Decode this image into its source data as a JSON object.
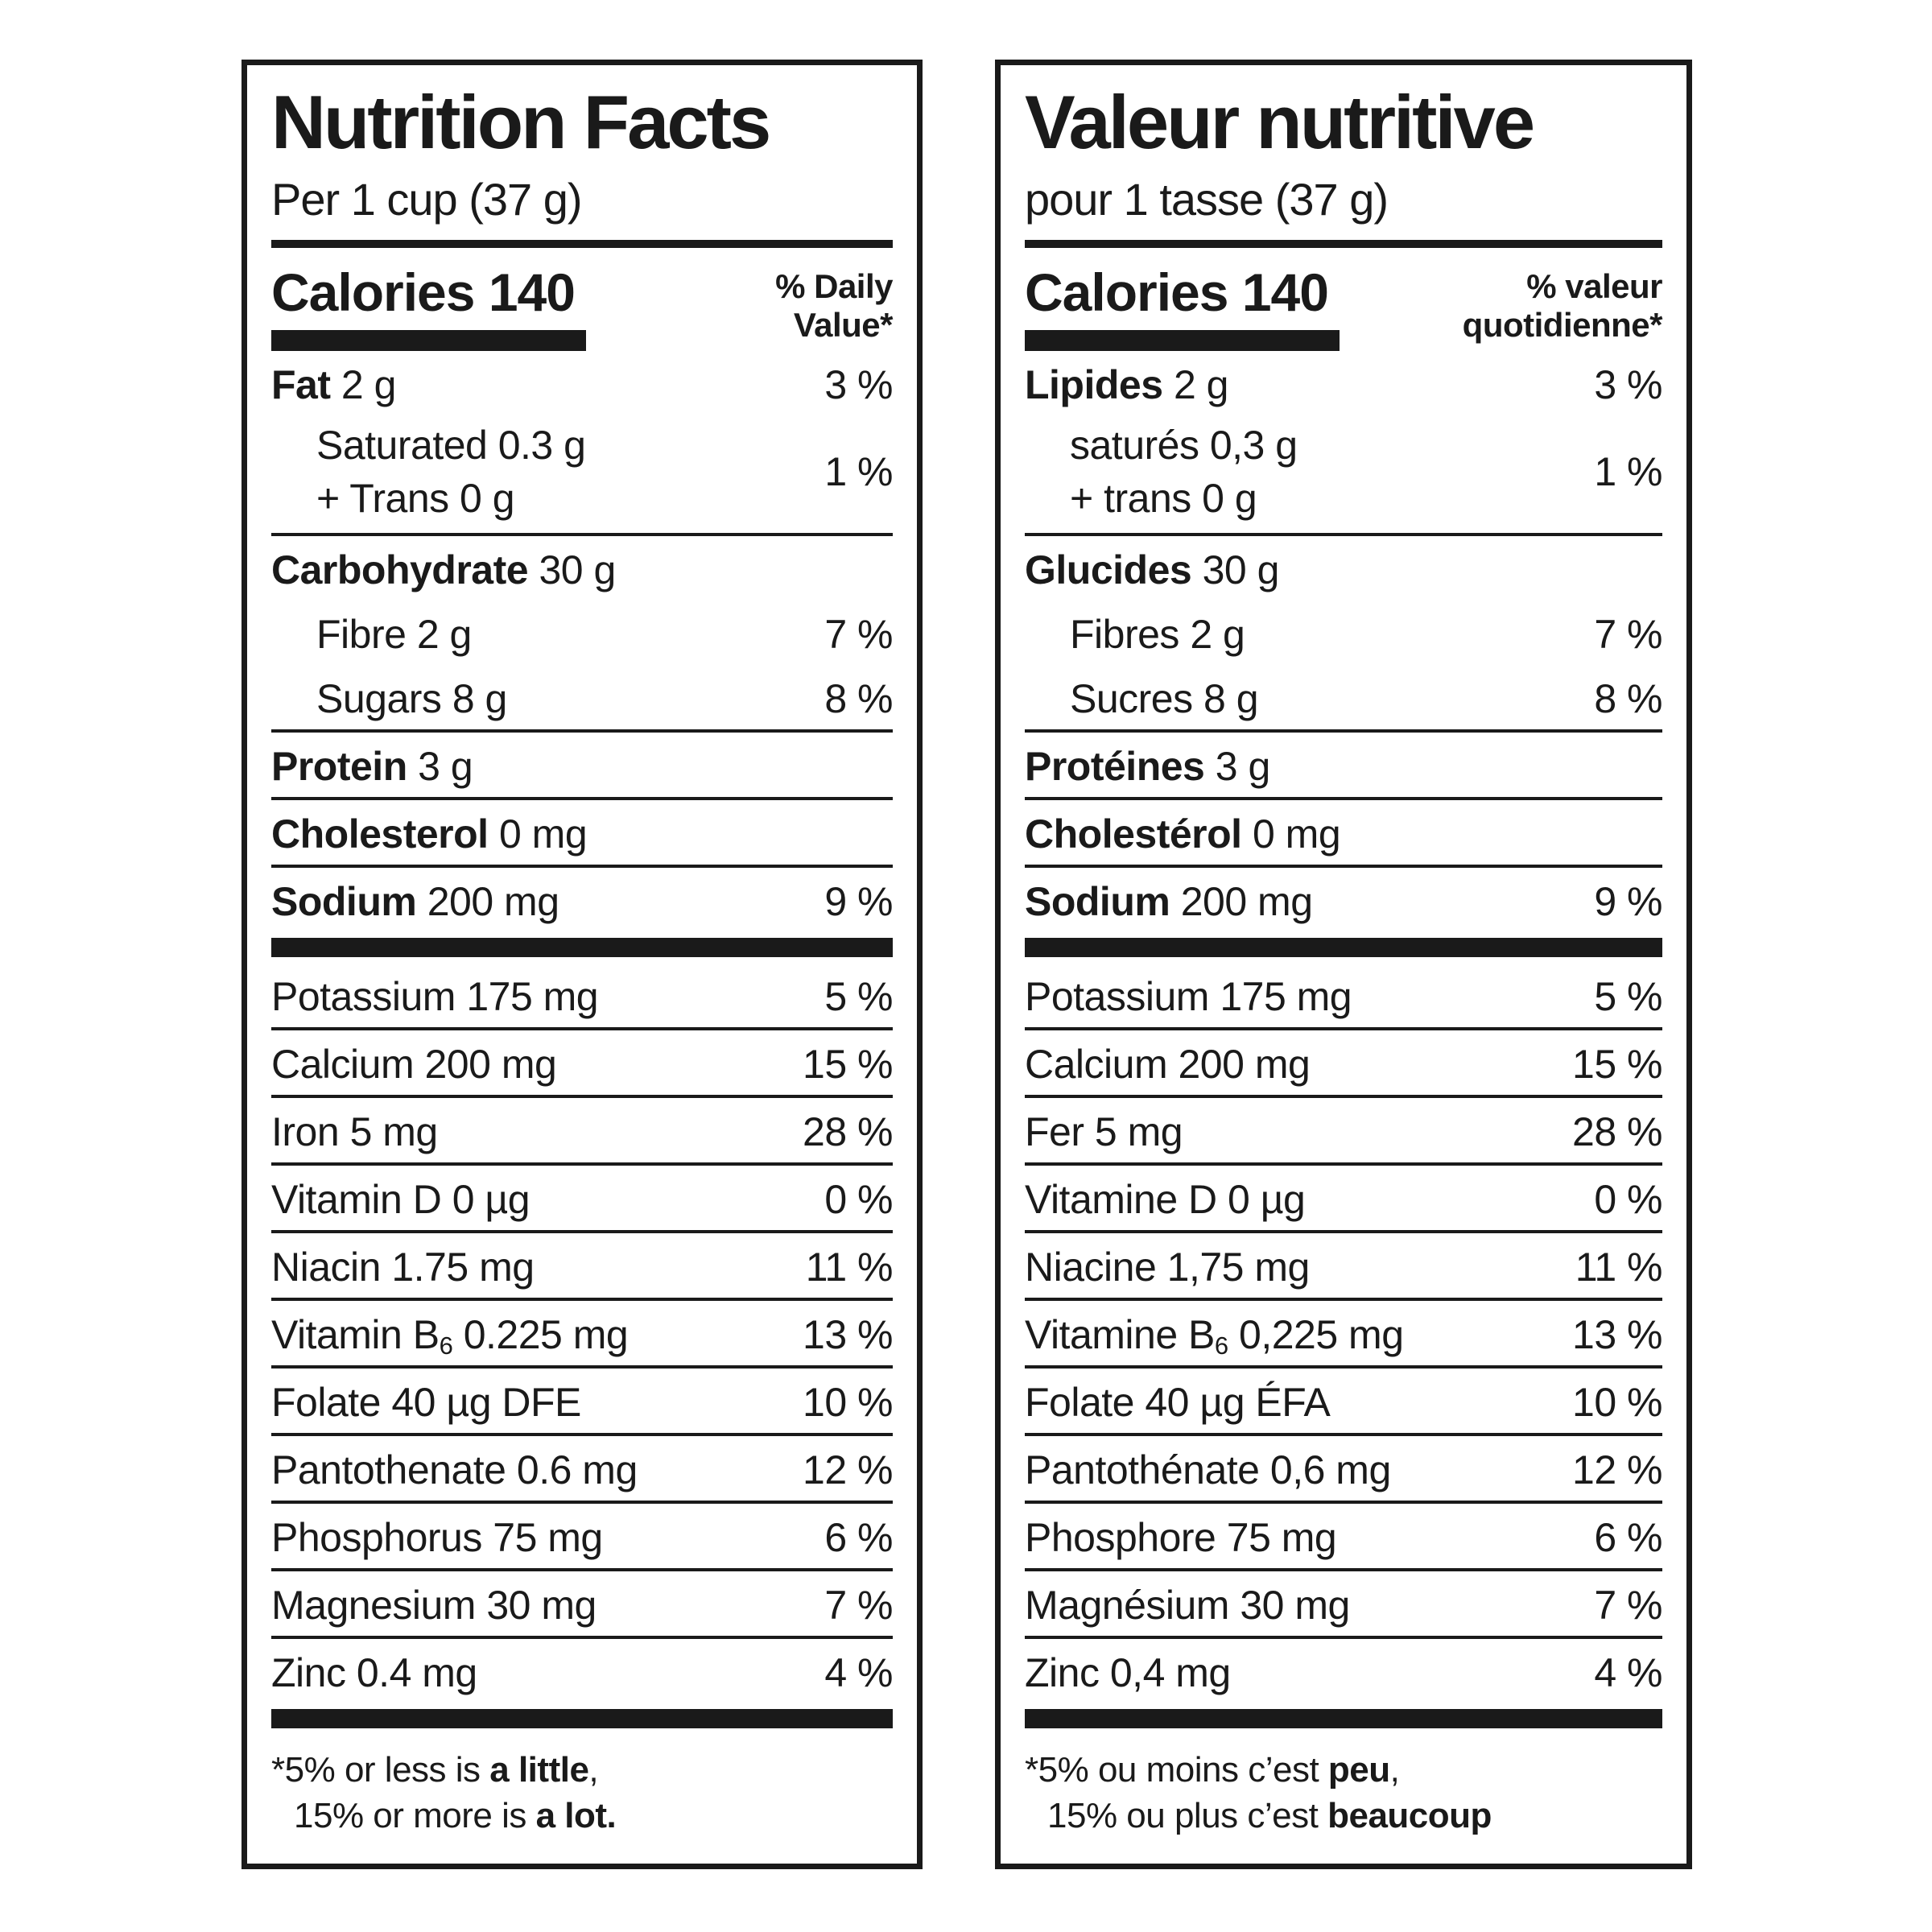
{
  "labels": [
    {
      "lang": "en",
      "title": "Nutrition Facts",
      "serving": "Per 1 cup (37 g)",
      "calories": {
        "label": "Calories",
        "value": "140"
      },
      "dv_header": [
        "% Daily",
        "Value*"
      ],
      "fat": {
        "name": "Fat",
        "amount": "2 g",
        "percent": "3 %"
      },
      "fat_sub": {
        "line1": "Saturated 0.3 g",
        "line2": "+ Trans 0 g",
        "percent": "1 %"
      },
      "carb": {
        "name": "Carbohydrate",
        "amount": "30 g",
        "percent": ""
      },
      "fibre": {
        "name": "Fibre",
        "amount": "2 g",
        "percent": "7 %"
      },
      "sugars": {
        "name": "Sugars",
        "amount": "8 g",
        "percent": "8 %"
      },
      "protein": {
        "name": "Protein",
        "amount": "3 g",
        "percent": ""
      },
      "cholesterol": {
        "name": "Cholesterol",
        "amount": "0 mg",
        "percent": ""
      },
      "sodium": {
        "name": "Sodium",
        "amount": "200 mg",
        "percent": "9 %"
      },
      "micronutrients": [
        {
          "name": "Potassium",
          "amount": "175 mg",
          "percent": "5 %"
        },
        {
          "name": "Calcium",
          "amount": "200 mg",
          "percent": "15 %"
        },
        {
          "name": "Iron",
          "amount": "5 mg",
          "percent": "28 %"
        },
        {
          "name": "Vitamin D",
          "amount": "0 µg",
          "percent": "0 %"
        },
        {
          "name": "Niacin",
          "amount": "1.75 mg",
          "percent": "11 %"
        },
        {
          "pre": "Vitamin B",
          "sub": "6",
          "amount": "0.225 mg",
          "percent": "13 %"
        },
        {
          "name": "Folate",
          "amount": "40 µg DFE",
          "percent": "10 %"
        },
        {
          "name": "Pantothenate",
          "amount": "0.6 mg",
          "percent": "12 %"
        },
        {
          "name": "Phosphorus",
          "amount": "75 mg",
          "percent": "6 %"
        },
        {
          "name": "Magnesium",
          "amount": "30 mg",
          "percent": "7 %"
        },
        {
          "name": "Zinc",
          "amount": "0.4 mg",
          "percent": "4 %"
        }
      ],
      "footnote": {
        "line1": [
          "*5% or less is ",
          "a little",
          ","
        ],
        "line2": [
          "15% or more is ",
          "a lot.",
          ""
        ]
      }
    },
    {
      "lang": "fr",
      "title": "Valeur nutritive",
      "serving": "pour 1 tasse (37 g)",
      "calories": {
        "label": "Calories",
        "value": "140"
      },
      "dv_header": [
        "% valeur",
        "quotidienne*"
      ],
      "fat": {
        "name": "Lipides",
        "amount": "2 g",
        "percent": "3 %"
      },
      "fat_sub": {
        "line1": "saturés 0,3 g",
        "line2": "+ trans 0 g",
        "percent": "1 %"
      },
      "carb": {
        "name": "Glucides",
        "amount": "30 g",
        "percent": ""
      },
      "fibre": {
        "name": "Fibres",
        "amount": "2 g",
        "percent": "7 %"
      },
      "sugars": {
        "name": "Sucres",
        "amount": "8 g",
        "percent": "8 %"
      },
      "protein": {
        "name": "Protéines",
        "amount": "3 g",
        "percent": ""
      },
      "cholesterol": {
        "name": "Cholestérol",
        "amount": "0 mg",
        "percent": ""
      },
      "sodium": {
        "name": "Sodium",
        "amount": "200 mg",
        "percent": "9 %"
      },
      "micronutrients": [
        {
          "name": "Potassium",
          "amount": "175 mg",
          "percent": "5 %"
        },
        {
          "name": "Calcium",
          "amount": "200 mg",
          "percent": "15 %"
        },
        {
          "name": "Fer",
          "amount": "5 mg",
          "percent": "28 %"
        },
        {
          "name": "Vitamine D",
          "amount": "0 µg",
          "percent": "0 %"
        },
        {
          "name": "Niacine",
          "amount": "1,75 mg",
          "percent": "11 %"
        },
        {
          "pre": "Vitamine B",
          "sub": "6",
          "amount": "0,225 mg",
          "percent": "13 %"
        },
        {
          "name": "Folate",
          "amount": "40 µg ÉFA",
          "percent": "10 %"
        },
        {
          "name": "Pantothénate",
          "amount": "0,6 mg",
          "percent": "12 %"
        },
        {
          "name": "Phosphore",
          "amount": "75 mg",
          "percent": "6 %"
        },
        {
          "name": "Magnésium",
          "amount": "30 mg",
          "percent": "7 %"
        },
        {
          "name": "Zinc",
          "amount": "0,4 mg",
          "percent": "4 %"
        }
      ],
      "footnote": {
        "line1": [
          "*5% ou moins c’est ",
          "peu",
          ","
        ],
        "line2": [
          "15% ou plus c’est ",
          "beaucoup",
          ""
        ]
      }
    }
  ]
}
